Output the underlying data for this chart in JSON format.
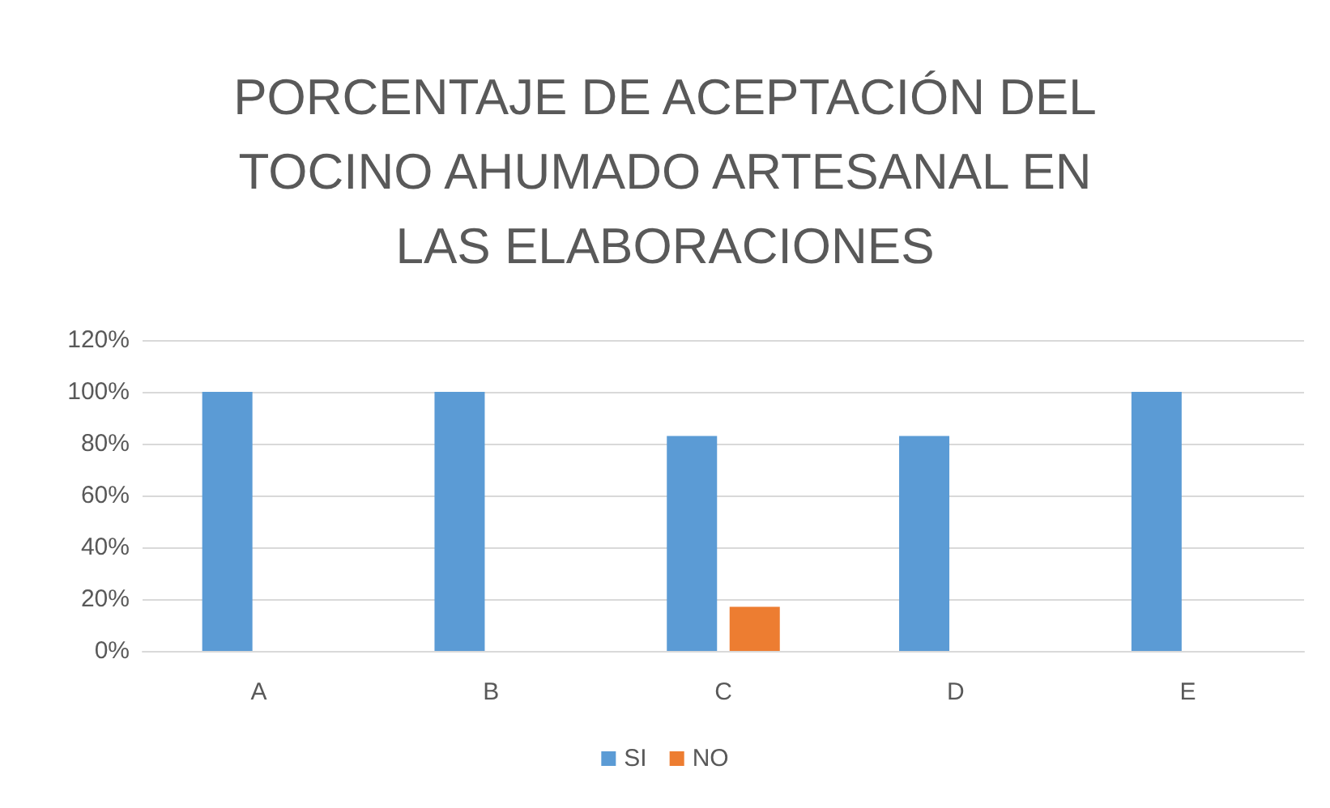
{
  "chart_data": {
    "type": "bar",
    "title": "PORCENTAJE DE ACEPTACIÓN DEL\nTOCINO AHUMADO ARTESANAL EN\nLAS ELABORACIONES",
    "categories": [
      "A",
      "B",
      "C",
      "D",
      "E"
    ],
    "series": [
      {
        "name": "SI",
        "color": "#5b9bd5",
        "values": [
          100,
          100,
          83,
          83,
          100
        ]
      },
      {
        "name": "NO",
        "color": "#ed7d31",
        "values": [
          0,
          0,
          17,
          0,
          0
        ]
      }
    ],
    "ylim": [
      0,
      120
    ],
    "yticks": [
      {
        "value": 0,
        "label": "0%"
      },
      {
        "value": 20,
        "label": "20%"
      },
      {
        "value": 40,
        "label": "40%"
      },
      {
        "value": 60,
        "label": "60%"
      },
      {
        "value": 80,
        "label": "80%"
      },
      {
        "value": 100,
        "label": "100%"
      },
      {
        "value": 120,
        "label": "120%"
      }
    ],
    "grid": "y",
    "legend": "bottom"
  }
}
